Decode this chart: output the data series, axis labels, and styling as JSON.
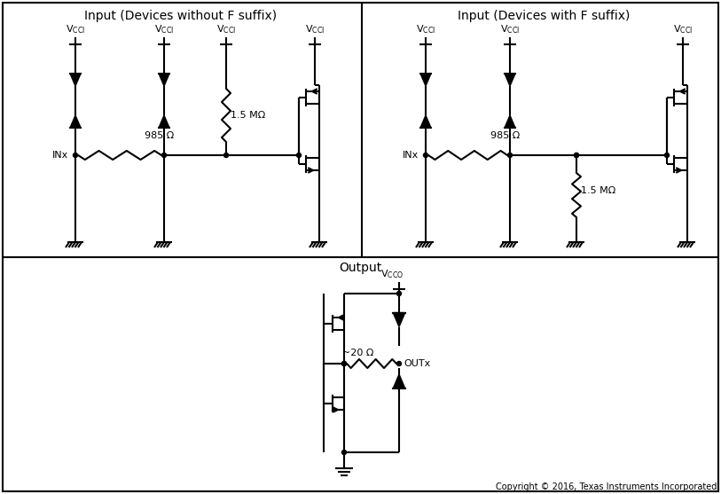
{
  "title_left": "Input (Devices without F suffix)",
  "title_right": "Input (Devices with F suffix)",
  "title_bottom": "Output",
  "copyright": "Copyright © 2016, Texas Instruments Incorporated",
  "lw": 1.5,
  "bg_color": "#ffffff",
  "line_color": "#000000"
}
